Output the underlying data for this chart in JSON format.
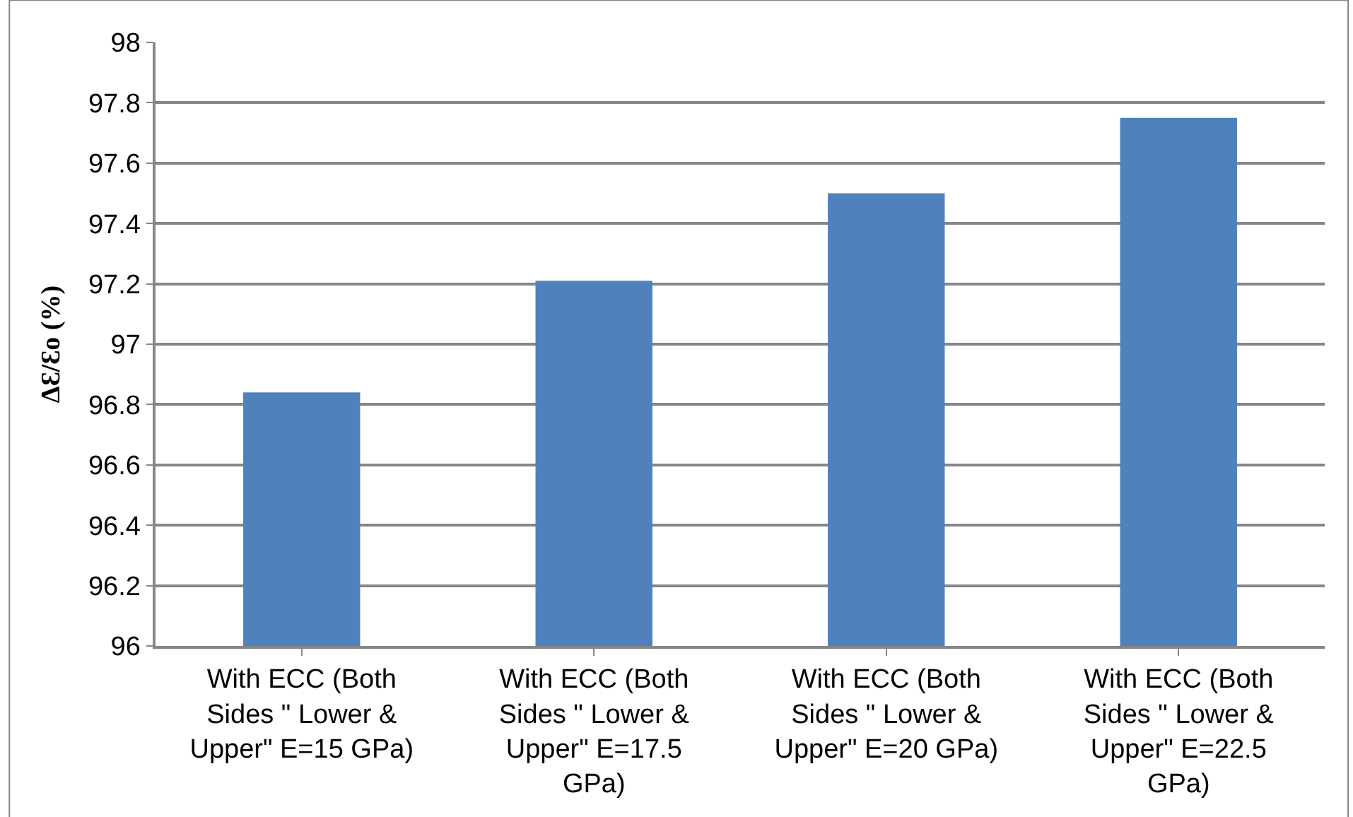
{
  "chart_data": {
    "type": "bar",
    "ylabel": "ΔƐ/Ɛo (%)",
    "categories": [
      "With ECC (Both Sides \" Lower & Upper\" E=15 GPa)",
      "With ECC (Both Sides \" Lower & Upper\" E=17.5 GPa)",
      "With ECC (Both Sides \" Lower & Upper\" E=20 GPa)",
      "With ECC (Both Sides \" Lower & Upper\" E=22.5 GPa)"
    ],
    "values": [
      96.84,
      97.21,
      97.5,
      97.75
    ],
    "color": "#4f81bd",
    "ylim": [
      96,
      98
    ],
    "yticks": [
      96,
      96.2,
      96.4,
      96.6,
      96.8,
      97,
      97.2,
      97.4,
      97.6,
      97.8,
      98
    ],
    "grid": "y",
    "legend": false
  }
}
